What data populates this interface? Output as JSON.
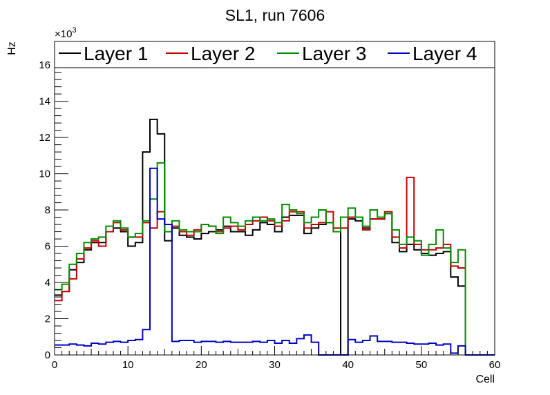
{
  "chart_data": {
    "type": "line",
    "step": true,
    "title": "SL1, run 7606",
    "xlabel": "Cell",
    "ylabel": "Hz",
    "y_multiplier_label": "×10",
    "y_multiplier_exponent": "3",
    "xlim": [
      0,
      60
    ],
    "ylim": [
      0,
      17.3
    ],
    "x_ticks": [
      0,
      10,
      20,
      30,
      40,
      50,
      60
    ],
    "y_ticks": [
      0,
      2,
      4,
      6,
      8,
      10,
      12,
      14,
      16
    ],
    "grid": false,
    "legend_position": "top",
    "bin_edges_start": 0,
    "bin_width": 1,
    "series": [
      {
        "name": "Layer 1",
        "color": "#000000",
        "values": [
          3.3,
          3.5,
          4.7,
          5.1,
          5.8,
          6.2,
          6.2,
          6.8,
          7.0,
          6.8,
          6.0,
          6.2,
          11.2,
          13.0,
          12.2,
          6.3,
          7.0,
          6.6,
          6.5,
          6.4,
          6.7,
          6.8,
          6.9,
          7.1,
          6.8,
          6.8,
          6.6,
          6.9,
          7.3,
          7.2,
          6.8,
          7.6,
          7.7,
          7.7,
          6.7,
          7.0,
          7.2,
          7.3,
          6.8,
          0.0,
          7.5,
          7.4,
          7.0,
          7.5,
          7.5,
          7.8,
          6.2,
          5.7,
          6.1,
          5.8,
          5.6,
          5.5,
          5.6,
          5.7,
          4.3,
          3.8,
          0.0,
          0.0,
          0.0,
          0.0
        ]
      },
      {
        "name": "Layer 2",
        "color": "#c00000",
        "values": [
          3.0,
          3.5,
          4.2,
          5.3,
          5.9,
          6.3,
          6.0,
          6.8,
          7.3,
          6.9,
          6.5,
          6.5,
          7.3,
          7.0,
          7.9,
          6.8,
          7.1,
          6.8,
          6.6,
          6.9,
          7.2,
          7.1,
          6.8,
          7.0,
          7.1,
          6.9,
          7.2,
          7.4,
          7.6,
          7.4,
          7.1,
          7.4,
          7.9,
          7.9,
          7.0,
          7.2,
          7.3,
          7.9,
          7.0,
          7.0,
          7.6,
          7.6,
          6.9,
          7.5,
          7.5,
          7.9,
          6.5,
          5.9,
          9.8,
          6.1,
          5.8,
          5.8,
          5.9,
          6.1,
          4.9,
          4.8,
          0.0,
          0.0,
          0.0,
          0.0
        ]
      },
      {
        "name": "Layer 3",
        "color": "#008c00",
        "values": [
          3.6,
          3.9,
          5.0,
          5.6,
          6.2,
          6.4,
          6.5,
          7.1,
          7.4,
          7.0,
          6.5,
          6.7,
          7.4,
          8.6,
          10.6,
          6.8,
          7.4,
          6.9,
          6.8,
          6.8,
          7.2,
          7.1,
          6.7,
          7.6,
          7.3,
          7.1,
          7.4,
          7.6,
          7.4,
          7.5,
          7.3,
          8.3,
          8.0,
          7.8,
          7.3,
          7.6,
          8.0,
          7.3,
          6.8,
          7.6,
          8.1,
          7.6,
          7.1,
          8.0,
          7.6,
          7.8,
          6.9,
          6.1,
          6.5,
          6.3,
          5.5,
          6.1,
          6.9,
          5.9,
          5.1,
          5.8,
          0.0,
          0.0,
          0.0,
          0.0
        ]
      },
      {
        "name": "Layer 4",
        "color": "#0000c0",
        "values": [
          0.55,
          0.55,
          0.6,
          0.55,
          0.5,
          0.65,
          0.6,
          0.7,
          0.75,
          0.7,
          0.8,
          0.85,
          1.4,
          10.3,
          7.5,
          7.2,
          0.75,
          0.8,
          0.8,
          0.7,
          0.75,
          0.75,
          0.7,
          0.75,
          0.7,
          0.7,
          0.7,
          0.75,
          0.7,
          0.8,
          0.65,
          0.8,
          0.65,
          0.9,
          1.1,
          0.7,
          0.0,
          0.0,
          0.0,
          0.0,
          0.85,
          0.7,
          0.8,
          1.05,
          0.75,
          0.75,
          0.7,
          0.7,
          0.65,
          0.6,
          0.6,
          0.65,
          0.55,
          0.6,
          0.1,
          0.5,
          0.0,
          0.0,
          0.0,
          0.0
        ]
      }
    ]
  }
}
